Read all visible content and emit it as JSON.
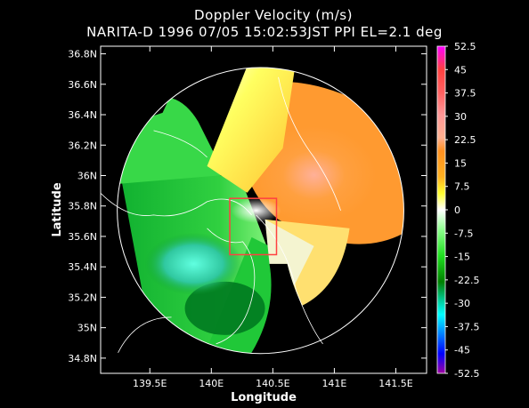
{
  "chart_data": {
    "type": "heatmap",
    "title": "Doppler Velocity (m/s)",
    "subtitle": "NARITA-D 1996 07/05 15:02:53JST PPI EL=2.1 deg",
    "xlabel": "Longitude",
    "ylabel": "Latitude",
    "xlim": [
      139.1,
      141.75
    ],
    "ylim": [
      34.7,
      36.85
    ],
    "x_ticks": [
      {
        "value": 139.5,
        "label": "139.5E"
      },
      {
        "value": 140.0,
        "label": "140E"
      },
      {
        "value": 140.5,
        "label": "140.5E"
      },
      {
        "value": 141.0,
        "label": "141E"
      },
      {
        "value": 141.5,
        "label": "141.5E"
      }
    ],
    "y_ticks": [
      {
        "value": 34.8,
        "label": "34.8N"
      },
      {
        "value": 35.0,
        "label": "35N"
      },
      {
        "value": 35.2,
        "label": "35.2N"
      },
      {
        "value": 35.4,
        "label": "35.4N"
      },
      {
        "value": 35.6,
        "label": "35.6N"
      },
      {
        "value": 35.8,
        "label": "35.8N"
      },
      {
        "value": 36.0,
        "label": "36N"
      },
      {
        "value": 36.2,
        "label": "36.2N"
      },
      {
        "value": 36.4,
        "label": "36.4N"
      },
      {
        "value": 36.6,
        "label": "36.6N"
      },
      {
        "value": 36.8,
        "label": "36.8N"
      }
    ],
    "colorbar": {
      "range": [
        -52.5,
        52.5
      ],
      "labels": [
        "52.5",
        "45",
        "37.5",
        "30",
        "22.5",
        "15",
        "7.5",
        "0",
        "-7.5",
        "-15",
        "-22.5",
        "-30",
        "-37.5",
        "-45",
        "-52.5"
      ],
      "values": [
        52.5,
        45,
        37.5,
        30,
        22.5,
        15,
        7.5,
        0,
        -7.5,
        -15,
        -22.5,
        -30,
        -37.5,
        -45,
        -52.5
      ],
      "colors": [
        "#ff00ff",
        "#ff5050",
        "#ff8080",
        "#ffb0a0",
        "#ffa040",
        "#ffc030",
        "#ffff40",
        "#ffffff",
        "#90ff90",
        "#20d020",
        "#008000",
        "#00ffff",
        "#0080ff",
        "#0000ff",
        "#800080"
      ]
    },
    "radar_center": {
      "lon": 140.4,
      "lat": 35.77
    },
    "range_ring_radius_deg_lat": 0.94,
    "box": {
      "lon": [
        140.15,
        140.53
      ],
      "lat": [
        35.48,
        35.85
      ],
      "color": "#ff4040"
    },
    "grid": false
  }
}
